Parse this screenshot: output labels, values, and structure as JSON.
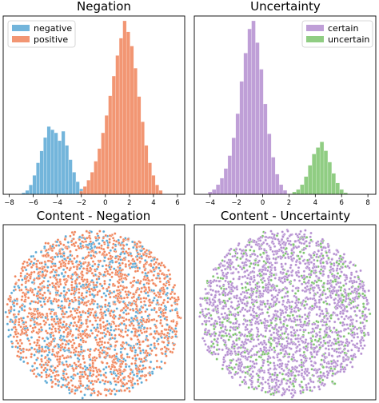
{
  "chart_data": [
    {
      "type": "histogram",
      "title": "Negation",
      "xlabel": "",
      "ylabel": "",
      "xlim": [
        -8.5,
        6.6
      ],
      "xticks": [
        "−8",
        "−6",
        "−4",
        "−2",
        "0",
        "2",
        "4",
        "6"
      ],
      "legend_position": "top-left",
      "series": [
        {
          "name": "negative",
          "color": "#5aa8d5",
          "bins": [
            {
              "x": -6.8,
              "count": 2
            },
            {
              "x": -6.5,
              "count": 5
            },
            {
              "x": -6.2,
              "count": 12
            },
            {
              "x": -5.9,
              "count": 24
            },
            {
              "x": -5.6,
              "count": 40
            },
            {
              "x": -5.3,
              "count": 55
            },
            {
              "x": -5.0,
              "count": 72
            },
            {
              "x": -4.7,
              "count": 86
            },
            {
              "x": -4.4,
              "count": 82
            },
            {
              "x": -4.1,
              "count": 78
            },
            {
              "x": -3.8,
              "count": 68
            },
            {
              "x": -3.5,
              "count": 80
            },
            {
              "x": -3.2,
              "count": 62
            },
            {
              "x": -2.9,
              "count": 44
            },
            {
              "x": -2.6,
              "count": 28
            },
            {
              "x": -2.3,
              "count": 16
            },
            {
              "x": -2.0,
              "count": 7
            }
          ]
        },
        {
          "name": "positive",
          "color": "#f0845a",
          "bins": [
            {
              "x": -2.0,
              "count": 4
            },
            {
              "x": -1.7,
              "count": 10
            },
            {
              "x": -1.4,
              "count": 18
            },
            {
              "x": -1.1,
              "count": 28
            },
            {
              "x": -0.8,
              "count": 42
            },
            {
              "x": -0.5,
              "count": 58
            },
            {
              "x": -0.2,
              "count": 78
            },
            {
              "x": 0.1,
              "count": 100
            },
            {
              "x": 0.4,
              "count": 125
            },
            {
              "x": 0.7,
              "count": 150
            },
            {
              "x": 1.0,
              "count": 176
            },
            {
              "x": 1.3,
              "count": 198
            },
            {
              "x": 1.6,
              "count": 220
            },
            {
              "x": 1.9,
              "count": 206
            },
            {
              "x": 2.2,
              "count": 188
            },
            {
              "x": 2.5,
              "count": 160
            },
            {
              "x": 2.8,
              "count": 124
            },
            {
              "x": 3.1,
              "count": 92
            },
            {
              "x": 3.4,
              "count": 62
            },
            {
              "x": 3.7,
              "count": 40
            },
            {
              "x": 4.0,
              "count": 24
            },
            {
              "x": 4.3,
              "count": 12
            },
            {
              "x": 4.6,
              "count": 5
            }
          ]
        }
      ]
    },
    {
      "type": "histogram",
      "title": "Uncertainty",
      "xlabel": "",
      "ylabel": "",
      "xlim": [
        -5.2,
        8.6
      ],
      "xticks": [
        "−4",
        "−2",
        "0",
        "2",
        "4",
        "6",
        "8"
      ],
      "legend_position": "top-right",
      "series": [
        {
          "name": "certain",
          "color": "#b48ed0",
          "bins": [
            {
              "x": -4.0,
              "count": 3
            },
            {
              "x": -3.7,
              "count": 6
            },
            {
              "x": -3.4,
              "count": 12
            },
            {
              "x": -3.1,
              "count": 20
            },
            {
              "x": -2.8,
              "count": 32
            },
            {
              "x": -2.5,
              "count": 48
            },
            {
              "x": -2.2,
              "count": 70
            },
            {
              "x": -1.9,
              "count": 100
            },
            {
              "x": -1.6,
              "count": 140
            },
            {
              "x": -1.3,
              "count": 175
            },
            {
              "x": -1.0,
              "count": 205
            },
            {
              "x": -0.7,
              "count": 215
            },
            {
              "x": -0.4,
              "count": 188
            },
            {
              "x": -0.1,
              "count": 155
            },
            {
              "x": 0.2,
              "count": 112
            },
            {
              "x": 0.5,
              "count": 75
            },
            {
              "x": 0.8,
              "count": 46
            },
            {
              "x": 1.1,
              "count": 25
            },
            {
              "x": 1.4,
              "count": 12
            },
            {
              "x": 1.7,
              "count": 5
            }
          ]
        },
        {
          "name": "uncertain",
          "color": "#7dc46d",
          "bins": [
            {
              "x": 2.4,
              "count": 3
            },
            {
              "x": 2.7,
              "count": 6
            },
            {
              "x": 3.0,
              "count": 12
            },
            {
              "x": 3.3,
              "count": 22
            },
            {
              "x": 3.6,
              "count": 36
            },
            {
              "x": 3.9,
              "count": 50
            },
            {
              "x": 4.2,
              "count": 58
            },
            {
              "x": 4.5,
              "count": 65
            },
            {
              "x": 4.8,
              "count": 54
            },
            {
              "x": 5.1,
              "count": 40
            },
            {
              "x": 5.4,
              "count": 26
            },
            {
              "x": 5.7,
              "count": 14
            },
            {
              "x": 6.0,
              "count": 6
            },
            {
              "x": 6.3,
              "count": 2
            }
          ]
        }
      ]
    },
    {
      "type": "scatter",
      "title": "Content - Negation",
      "xlabel": "",
      "ylabel": "",
      "axes_ticks": false,
      "shape": "circular point cloud",
      "series": [
        {
          "name": "negative",
          "color": "#5aa8d5",
          "approx_share": 0.28
        },
        {
          "name": "positive",
          "color": "#f0845a",
          "approx_share": 0.72
        }
      ]
    },
    {
      "type": "scatter",
      "title": "Content - Uncertainty",
      "xlabel": "",
      "ylabel": "",
      "axes_ticks": false,
      "shape": "circular point cloud",
      "series": [
        {
          "name": "certain",
          "color": "#b48ed0",
          "approx_share": 0.8
        },
        {
          "name": "uncertain",
          "color": "#7dc46d",
          "approx_share": 0.2
        }
      ]
    }
  ]
}
